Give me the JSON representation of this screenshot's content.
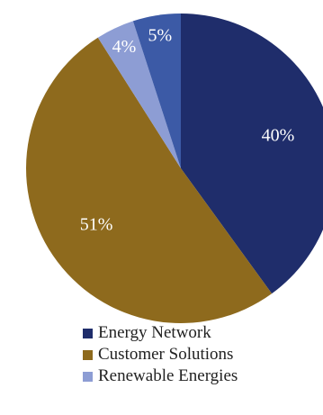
{
  "chart_data": {
    "type": "pie",
    "title": "",
    "start_angle_deg": 0,
    "direction": "clockwise",
    "slices": [
      {
        "label": "Energy Network",
        "value": 40,
        "display": "40%",
        "color": "#1f2d6b"
      },
      {
        "label": "Customer Solutions",
        "value": 51,
        "display": "51%",
        "color": "#8e6a1d"
      },
      {
        "label": "Renewable Energies",
        "value": 4,
        "display": "4%",
        "color": "#8d9dd4"
      },
      {
        "label": "",
        "value": 5,
        "display": "5%",
        "color": "#3c5aa6"
      }
    ],
    "legend": {
      "placement": "bottom",
      "entries": [
        "Energy Network",
        "Customer Solutions",
        "Renewable Energies"
      ]
    }
  }
}
